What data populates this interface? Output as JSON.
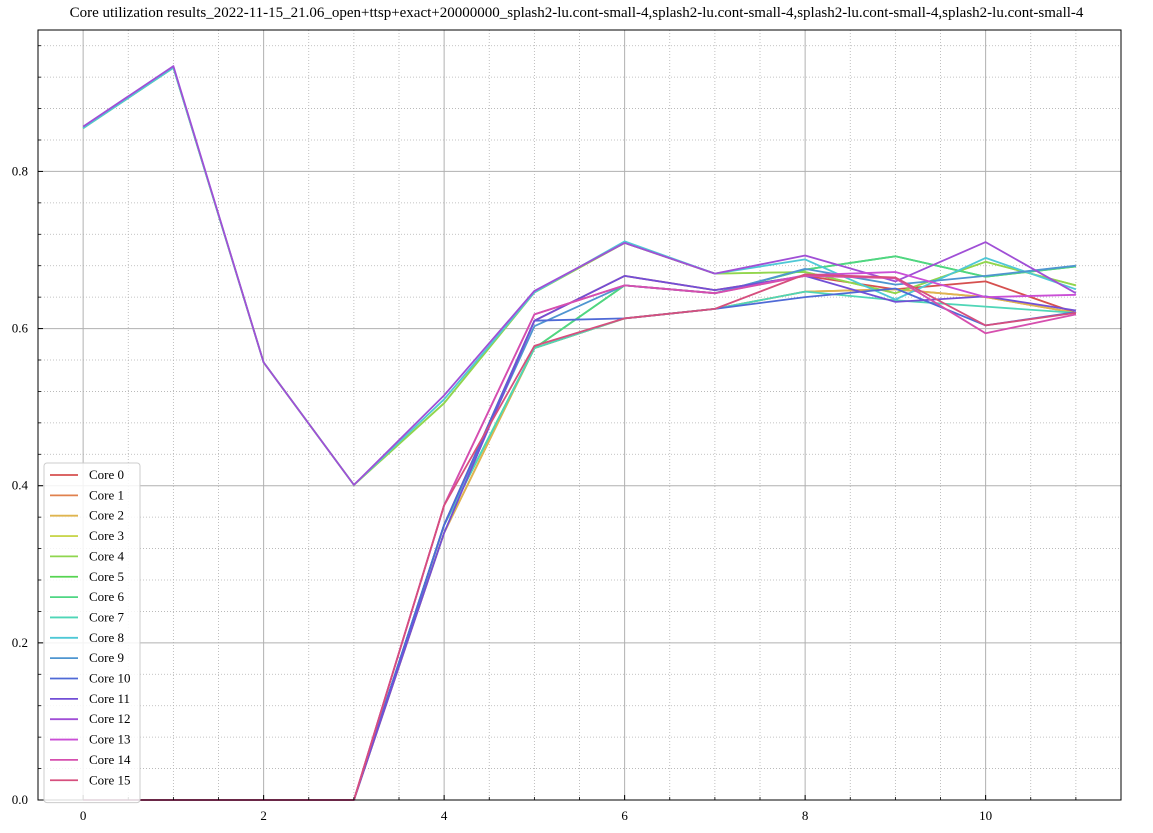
{
  "chart_data": {
    "type": "line",
    "title": "Core utilization results_2022-11-15_21.06_open+ttsp+exact+20000000_splash2-lu.cont-small-4,splash2-lu.cont-small-4,splash2-lu.cont-small-4,splash2-lu.cont-small-4",
    "xlabel": "",
    "ylabel": "",
    "xlim": [
      -0.5,
      11.5
    ],
    "ylim": [
      0.0,
      0.98
    ],
    "x": [
      0,
      1,
      2,
      3,
      4,
      5,
      6,
      7,
      8,
      9,
      10,
      11
    ],
    "x_ticks": [
      0,
      2,
      4,
      6,
      8,
      10
    ],
    "y_ticks": [
      0.0,
      0.2,
      0.4,
      0.6,
      0.8
    ],
    "grid": "major solid, minor dotted",
    "legend_position": "lower-left",
    "series": [
      {
        "name": "Core 0",
        "color": "#d6504f",
        "values": [
          0,
          0,
          0,
          0,
          0.35,
          0.61,
          0.667,
          0.649,
          0.667,
          0.65,
          0.66,
          0.62
        ]
      },
      {
        "name": "Core 1",
        "color": "#e0814e",
        "values": [
          0,
          0,
          0,
          0,
          0.34,
          0.575,
          0.613,
          0.625,
          0.647,
          0.65,
          0.64,
          0.62
        ]
      },
      {
        "name": "Core 2",
        "color": "#dfb54f",
        "values": [
          0,
          0,
          0,
          0,
          0.34,
          0.575,
          0.613,
          0.625,
          0.647,
          0.65,
          0.64,
          0.62
        ]
      },
      {
        "name": "Core 3",
        "color": "#c9d64f",
        "values": [
          0.855,
          0.932,
          0.557,
          0.401,
          0.505,
          0.646,
          0.709,
          0.67,
          0.672,
          0.645,
          0.685,
          0.655
        ]
      },
      {
        "name": "Core 4",
        "color": "#8fd64f",
        "values": [
          0.855,
          0.932,
          0.557,
          0.401,
          0.505,
          0.646,
          0.709,
          0.67,
          0.672,
          0.645,
          0.685,
          0.655
        ]
      },
      {
        "name": "Core 5",
        "color": "#56d452",
        "values": [
          0,
          0,
          0,
          0,
          0.35,
          0.575,
          0.655,
          0.645,
          0.675,
          0.692,
          0.666,
          0.679
        ]
      },
      {
        "name": "Core 6",
        "color": "#4fd683",
        "values": [
          0,
          0,
          0,
          0,
          0.35,
          0.575,
          0.655,
          0.645,
          0.675,
          0.692,
          0.666,
          0.679
        ]
      },
      {
        "name": "Core 7",
        "color": "#4fd6b7",
        "values": [
          0,
          0,
          0,
          0,
          0.35,
          0.575,
          0.613,
          0.625,
          0.647,
          0.636,
          0.628,
          0.62
        ]
      },
      {
        "name": "Core 8",
        "color": "#4fc8d6",
        "values": [
          0.855,
          0.932,
          0.557,
          0.401,
          0.51,
          0.646,
          0.711,
          0.67,
          0.688,
          0.637,
          0.69,
          0.65
        ]
      },
      {
        "name": "Core 9",
        "color": "#4f95d0",
        "values": [
          0,
          0,
          0,
          0,
          0.35,
          0.603,
          0.655,
          0.645,
          0.676,
          0.656,
          0.667,
          0.68
        ]
      },
      {
        "name": "Core 10",
        "color": "#4f6ad6",
        "values": [
          0,
          0,
          0,
          0,
          0.35,
          0.61,
          0.613,
          0.625,
          0.64,
          0.651,
          0.604,
          0.621
        ]
      },
      {
        "name": "Core 11",
        "color": "#724fd6",
        "values": [
          0,
          0,
          0,
          0,
          0.34,
          0.61,
          0.667,
          0.649,
          0.667,
          0.634,
          0.641,
          0.623
        ]
      },
      {
        "name": "Core 12",
        "color": "#a04fd6",
        "values": [
          0.857,
          0.934,
          0.557,
          0.401,
          0.515,
          0.648,
          0.709,
          0.67,
          0.693,
          0.66,
          0.71,
          0.645
        ]
      },
      {
        "name": "Core 13",
        "color": "#ca4fd6",
        "values": [
          0,
          0,
          0,
          0,
          0.375,
          0.618,
          0.655,
          0.645,
          0.668,
          0.672,
          0.64,
          0.643
        ]
      },
      {
        "name": "Core 14",
        "color": "#d64fae",
        "values": [
          0,
          0,
          0,
          0,
          0.375,
          0.618,
          0.655,
          0.645,
          0.667,
          0.664,
          0.594,
          0.618
        ]
      },
      {
        "name": "Core 15",
        "color": "#d64f7e",
        "values": [
          0,
          0,
          0,
          0,
          0.375,
          0.578,
          0.613,
          0.625,
          0.669,
          0.665,
          0.604,
          0.62
        ]
      }
    ]
  }
}
